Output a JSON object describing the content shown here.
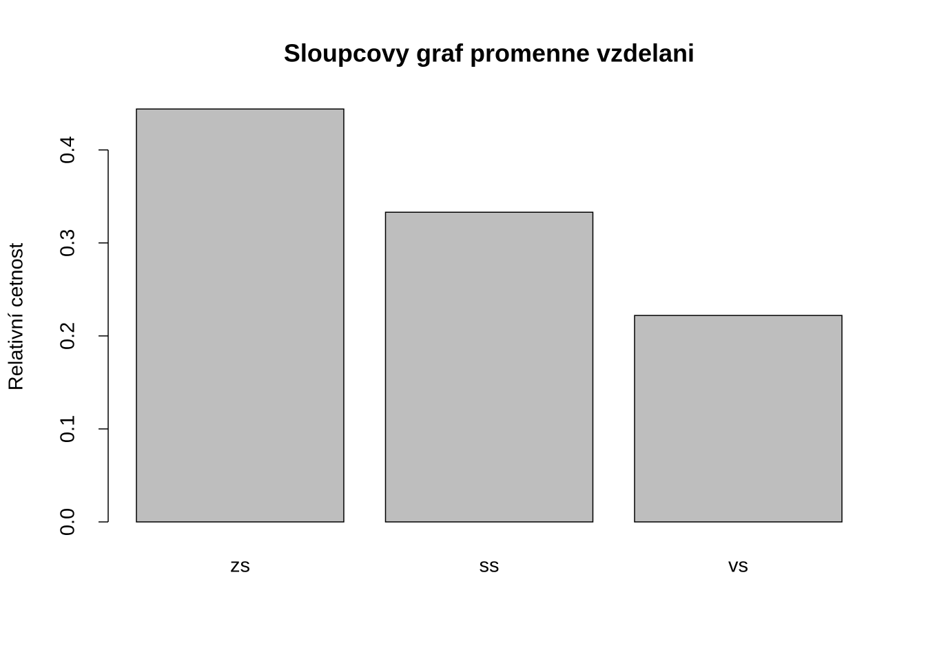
{
  "chart_data": {
    "type": "bar",
    "title": "Sloupcovy graf promenne vzdelani",
    "y_label": "Relativní cetnost",
    "categories": [
      "zs",
      "ss",
      "vs"
    ],
    "values": [
      0.444,
      0.333,
      0.222
    ],
    "color": "#bebebe",
    "ylim": [
      0,
      0.462
    ],
    "yticks": [
      {
        "value": 0,
        "label": "0.0"
      },
      0.1,
      0.2,
      0.3,
      0.4
    ],
    "grid": false
  }
}
